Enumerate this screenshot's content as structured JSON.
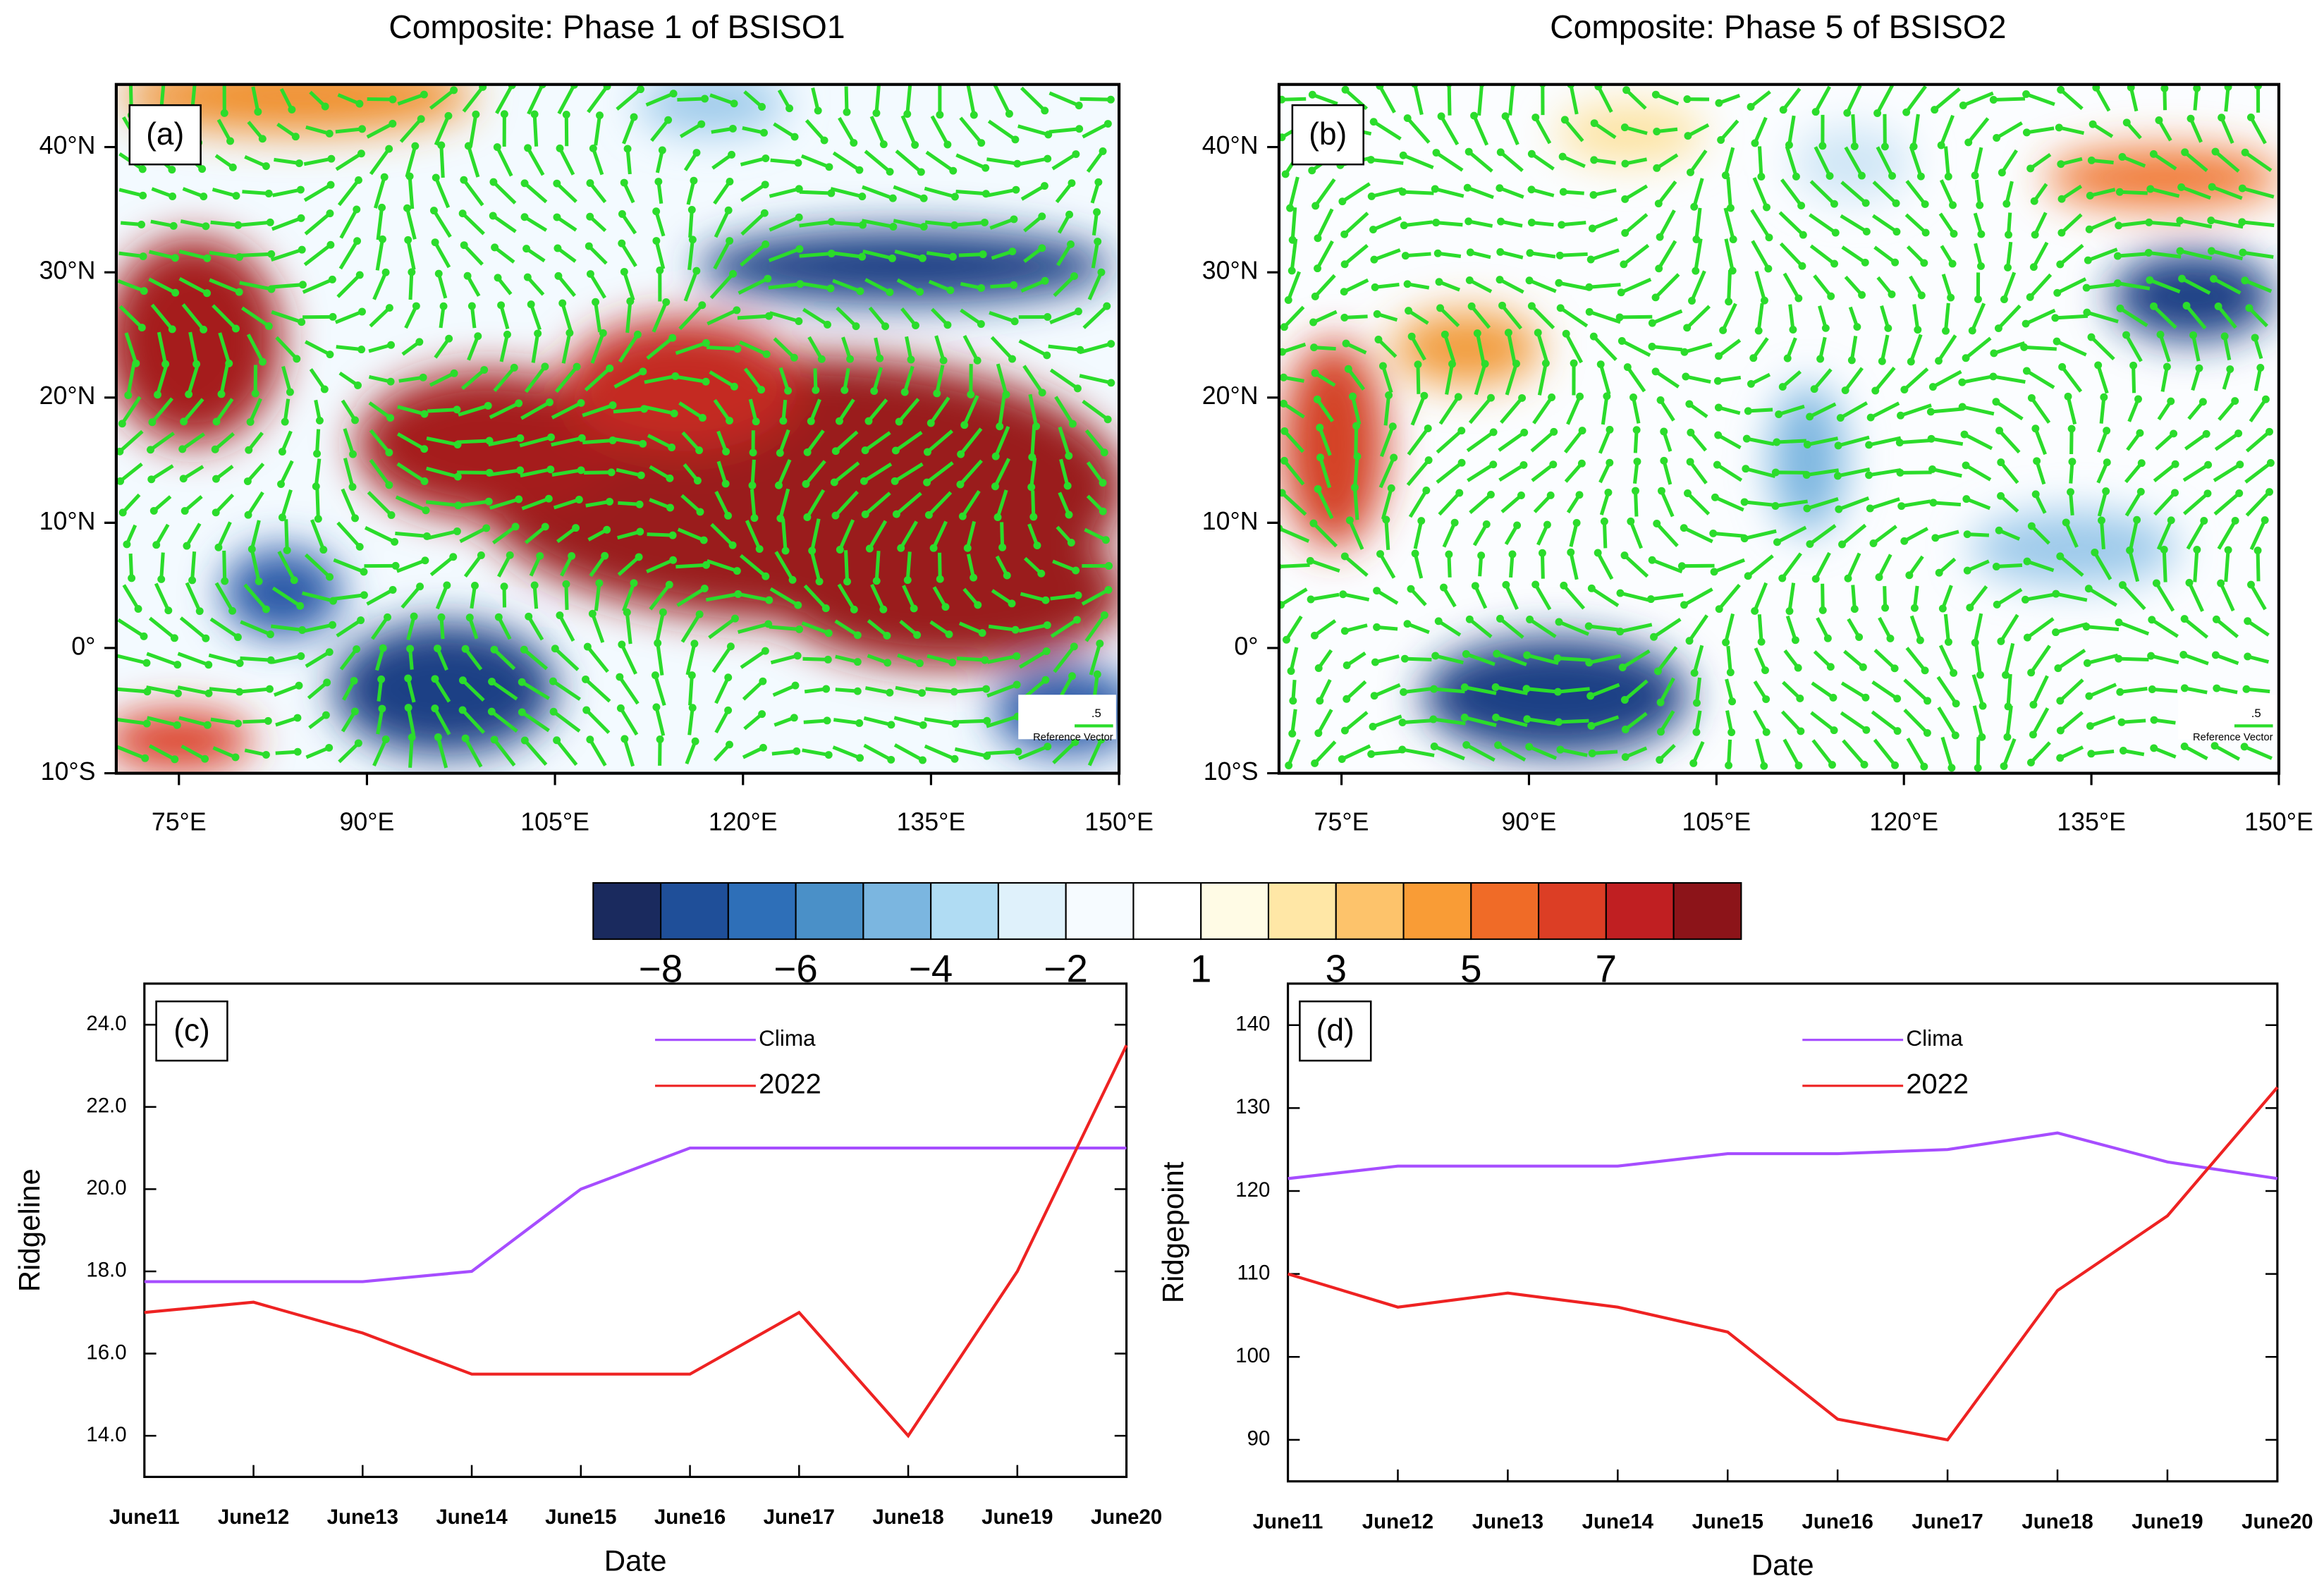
{
  "chart_data": [
    {
      "type": "map",
      "title": "Composite: Phase 1 of BSISO1",
      "panel_label": "(a)",
      "xlim": [
        70,
        150
      ],
      "ylim": [
        -10,
        45
      ],
      "xticks": [
        {
          "value": 75,
          "label": "75°E"
        },
        {
          "value": 90,
          "label": "90°E"
        },
        {
          "value": 105,
          "label": "105°E"
        },
        {
          "value": 120,
          "label": "120°E"
        },
        {
          "value": 135,
          "label": "135°E"
        },
        {
          "value": 150,
          "label": "150°E"
        }
      ],
      "yticks": [
        {
          "value": -10,
          "label": "10°S"
        },
        {
          "value": 0,
          "label": "0°"
        },
        {
          "value": 10,
          "label": "10°N"
        },
        {
          "value": 20,
          "label": "20°N"
        },
        {
          "value": 30,
          "label": "30°N"
        },
        {
          "value": 40,
          "label": "40°N"
        }
      ],
      "annotations": [
        ".5",
        "Reference Vector"
      ]
    },
    {
      "type": "map",
      "title": "Composite: Phase 5 of BSISO2",
      "panel_label": "(b)",
      "xlim": [
        70,
        150
      ],
      "ylim": [
        -10,
        45
      ],
      "xticks": [
        {
          "value": 75,
          "label": "75°E"
        },
        {
          "value": 90,
          "label": "90°E"
        },
        {
          "value": 105,
          "label": "105°E"
        },
        {
          "value": 120,
          "label": "120°E"
        },
        {
          "value": 135,
          "label": "135°E"
        },
        {
          "value": 150,
          "label": "150°E"
        }
      ],
      "yticks": [
        {
          "value": -10,
          "label": "10°S"
        },
        {
          "value": 0,
          "label": "0°"
        },
        {
          "value": 10,
          "label": "10°N"
        },
        {
          "value": 20,
          "label": "20°N"
        },
        {
          "value": 30,
          "label": "30°N"
        },
        {
          "value": 40,
          "label": "40°N"
        }
      ],
      "annotations": [
        ".5",
        "Reference Vector"
      ]
    },
    {
      "type": "colorbar",
      "colors": [
        "#1a2a5e",
        "#1f4f99",
        "#2e6fb8",
        "#4a90c8",
        "#7bb6e0",
        "#b0dcf3",
        "#dff1fb",
        "#f6fbff",
        "#ffffff",
        "#fffbe5",
        "#ffe7a6",
        "#fdc36b",
        "#f99c36",
        "#f06b27",
        "#dc3e25",
        "#c01f22",
        "#8c1419"
      ],
      "ticks": [
        {
          "value": -8,
          "label": "−8"
        },
        {
          "value": -6,
          "label": "−6"
        },
        {
          "value": -4,
          "label": "−4"
        },
        {
          "value": -2,
          "label": "−2"
        },
        1,
        3,
        5,
        7
      ]
    },
    {
      "type": "line",
      "panel_label": "(c)",
      "x_label": "Date",
      "y_label": "Ridgeline",
      "categories": [
        "June11",
        "June12",
        "June13",
        "June14",
        "June15",
        "June16",
        "June17",
        "June18",
        "June19",
        "June20"
      ],
      "series": [
        {
          "name": "Clima",
          "color": "#a64dff",
          "values": [
            17.75,
            17.75,
            17.75,
            18,
            20,
            21,
            21,
            21,
            21,
            21
          ]
        },
        {
          "name": "2022",
          "color": "#ee2222",
          "values": [
            17,
            17.25,
            16.5,
            15.5,
            15.5,
            15.5,
            17,
            14,
            18,
            23.5
          ]
        }
      ],
      "ylim": [
        13,
        25
      ],
      "yticks": [
        {
          "value": 14,
          "label": "14.0"
        },
        {
          "value": 16,
          "label": "16.0"
        },
        {
          "value": 18,
          "label": "18.0"
        },
        {
          "value": 20,
          "label": "20.0"
        },
        {
          "value": 22,
          "label": "22.0"
        },
        {
          "value": 24,
          "label": "24.0"
        }
      ],
      "legend": "upper right"
    },
    {
      "type": "line",
      "panel_label": "(d)",
      "x_label": "Date",
      "y_label": "Ridgepoint",
      "categories": [
        "June11",
        "June12",
        "June13",
        "June14",
        "June15",
        "June16",
        "June17",
        "June18",
        "June19",
        "June20"
      ],
      "series": [
        {
          "name": "Clima",
          "color": "#a64dff",
          "values": [
            121.5,
            123,
            123,
            123,
            124.5,
            124.5,
            125,
            127,
            123.5,
            121.5
          ]
        },
        {
          "name": "2022",
          "color": "#ee2222",
          "values": [
            110,
            106,
            107.7,
            106,
            103,
            92.5,
            90,
            108,
            117,
            132.5
          ]
        }
      ],
      "ylim": [
        85,
        145
      ],
      "yticks": [
        90,
        100,
        110,
        120,
        130,
        140
      ],
      "legend": "upper right"
    }
  ]
}
